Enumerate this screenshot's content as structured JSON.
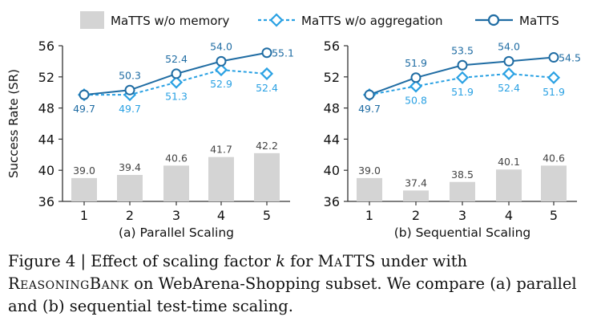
{
  "legend": {
    "items": [
      {
        "label": "MaTTS w/o memory",
        "style": "bar"
      },
      {
        "label": "MaTTS w/o aggregation",
        "style": "dashed-diamond"
      },
      {
        "label": "MaTTS",
        "style": "solid-circle"
      }
    ]
  },
  "colors": {
    "bar": "#d4d4d4",
    "line_dark": "#1f6ca3",
    "line_light": "#2aa1e3",
    "axis": "#333333",
    "label_blue": "#1f6ca3"
  },
  "chart_data": [
    {
      "type": "bar+line",
      "title": "(a) Parallel Scaling",
      "ylabel": "Success Rate (SR)",
      "ylim": [
        36,
        56
      ],
      "yticks": [
        36,
        40,
        44,
        48,
        52,
        56
      ],
      "categories": [
        "1",
        "2",
        "3",
        "4",
        "5"
      ],
      "series": [
        {
          "name": "MaTTS w/o memory",
          "kind": "bar",
          "values": [
            39.0,
            39.4,
            40.6,
            41.7,
            42.2
          ]
        },
        {
          "name": "MaTTS w/o aggregation",
          "kind": "line",
          "values": [
            49.7,
            49.7,
            51.3,
            52.9,
            52.4
          ]
        },
        {
          "name": "MaTTS",
          "kind": "line",
          "values": [
            49.7,
            50.3,
            52.4,
            54.0,
            55.1
          ]
        }
      ]
    },
    {
      "type": "bar+line",
      "title": "(b) Sequential Scaling",
      "ylabel": "",
      "ylim": [
        36,
        56
      ],
      "yticks": [
        36,
        40,
        44,
        48,
        52,
        56
      ],
      "categories": [
        "1",
        "2",
        "3",
        "4",
        "5"
      ],
      "series": [
        {
          "name": "MaTTS w/o memory",
          "kind": "bar",
          "values": [
            39.0,
            37.4,
            38.5,
            40.1,
            40.6
          ]
        },
        {
          "name": "MaTTS w/o aggregation",
          "kind": "line",
          "values": [
            49.7,
            50.8,
            51.9,
            52.4,
            51.9
          ]
        },
        {
          "name": "MaTTS",
          "kind": "line",
          "values": [
            49.7,
            51.9,
            53.5,
            54.0,
            54.5
          ]
        }
      ]
    }
  ],
  "caption": {
    "prefix": "Figure 4 | Effect of scaling factor ",
    "k": "k",
    "mid1": " for ",
    "matts": "MaTTS",
    "mid2": " under with ",
    "reasoningbank": "ReasoningBank",
    "suffix": " on WebArena-Shopping subset. We compare (a) parallel and (b) sequential test-time scaling."
  }
}
